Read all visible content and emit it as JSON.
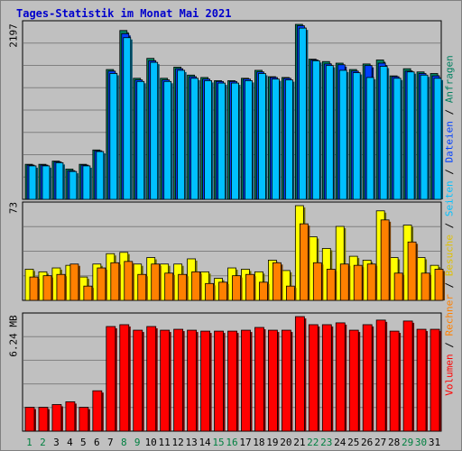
{
  "title": "Tages-Statistik im Monat Mai 2021",
  "legend": {
    "top": [
      {
        "label": "Anfragen",
        "color": "#008060"
      },
      {
        "label": "Dateien",
        "color": "#0040ff"
      },
      {
        "label": "Seiten",
        "color": "#00c0ff"
      },
      {
        "label": "Besuche",
        "color": "#e0c000"
      },
      {
        "label": "Rechner",
        "color": "#ff8000"
      },
      {
        "label": "Volumen",
        "color": "#ff0000"
      }
    ],
    "separator": " / "
  },
  "chart_data": [
    {
      "type": "bar",
      "title": "Tages-Statistik im Monat Mai 2021",
      "categories": [
        "1",
        "2",
        "3",
        "4",
        "5",
        "6",
        "7",
        "8",
        "9",
        "10",
        "11",
        "12",
        "13",
        "14",
        "15",
        "16",
        "17",
        "18",
        "19",
        "20",
        "21",
        "22",
        "23",
        "24",
        "25",
        "26",
        "27",
        "28",
        "29",
        "30",
        "31"
      ],
      "weekend_days": [
        "1",
        "2",
        "8",
        "9",
        "15",
        "16",
        "22",
        "23",
        "29",
        "30"
      ],
      "ymax_label": "2197",
      "ylim": [
        0,
        2197
      ],
      "series": [
        {
          "name": "Anfragen",
          "color": "#008060",
          "values": [
            440,
            440,
            480,
            380,
            440,
            620,
            1630,
            2120,
            1520,
            1770,
            1520,
            1660,
            1560,
            1530,
            1490,
            1490,
            1520,
            1620,
            1540,
            1530,
            2197,
            1760,
            1730,
            1710,
            1630,
            1700,
            1750,
            1550,
            1640,
            1600,
            1580
          ]
        },
        {
          "name": "Dateien",
          "color": "#0040ff",
          "values": [
            430,
            430,
            470,
            360,
            430,
            610,
            1610,
            2080,
            1500,
            1740,
            1500,
            1640,
            1540,
            1510,
            1480,
            1480,
            1510,
            1600,
            1530,
            1520,
            2180,
            1750,
            1700,
            1690,
            1610,
            1680,
            1710,
            1540,
            1610,
            1580,
            1550
          ]
        },
        {
          "name": "Seiten",
          "color": "#00c0ff",
          "values": [
            420,
            420,
            460,
            350,
            420,
            600,
            1580,
            2030,
            1480,
            1720,
            1480,
            1620,
            1520,
            1490,
            1460,
            1460,
            1490,
            1580,
            1510,
            1500,
            2150,
            1740,
            1680,
            1620,
            1590,
            1530,
            1670,
            1520,
            1600,
            1560,
            1520
          ]
        }
      ]
    },
    {
      "type": "bar",
      "categories": [
        "1",
        "2",
        "3",
        "4",
        "5",
        "6",
        "7",
        "8",
        "9",
        "10",
        "11",
        "12",
        "13",
        "14",
        "15",
        "16",
        "17",
        "18",
        "19",
        "20",
        "21",
        "22",
        "23",
        "24",
        "25",
        "26",
        "27",
        "28",
        "29",
        "30",
        "31"
      ],
      "ymax_label": "73",
      "ylim": [
        0,
        73
      ],
      "series": [
        {
          "name": "Besuche",
          "color": "#ffff00",
          "values": [
            24,
            22,
            25,
            27,
            18,
            28,
            36,
            37,
            28,
            33,
            28,
            28,
            32,
            22,
            17,
            25,
            24,
            22,
            31,
            23,
            73,
            49,
            40,
            57,
            34,
            31,
            69,
            33,
            58,
            33,
            27
          ]
        },
        {
          "name": "Rechner",
          "color": "#ff8000",
          "values": [
            18,
            19,
            20,
            28,
            11,
            25,
            29,
            30,
            20,
            28,
            21,
            20,
            22,
            13,
            14,
            19,
            20,
            14,
            29,
            11,
            59,
            29,
            24,
            28,
            27,
            28,
            62,
            21,
            45,
            21,
            24
          ]
        }
      ]
    },
    {
      "type": "bar",
      "categories": [
        "1",
        "2",
        "3",
        "4",
        "5",
        "6",
        "7",
        "8",
        "9",
        "10",
        "11",
        "12",
        "13",
        "14",
        "15",
        "16",
        "17",
        "18",
        "19",
        "20",
        "21",
        "22",
        "23",
        "24",
        "25",
        "26",
        "27",
        "28",
        "29",
        "30",
        "31"
      ],
      "ymax_label": "6.24 MB",
      "ylim": [
        0,
        6.24
      ],
      "series": [
        {
          "name": "Volumen",
          "color": "#ff0000",
          "values": [
            1.3,
            1.3,
            1.45,
            1.6,
            1.3,
            2.2,
            5.7,
            5.8,
            5.5,
            5.7,
            5.5,
            5.55,
            5.5,
            5.45,
            5.45,
            5.45,
            5.5,
            5.65,
            5.5,
            5.5,
            6.24,
            5.8,
            5.8,
            5.9,
            5.5,
            5.8,
            6.05,
            5.45,
            6.0,
            5.55,
            5.55
          ]
        }
      ]
    }
  ]
}
